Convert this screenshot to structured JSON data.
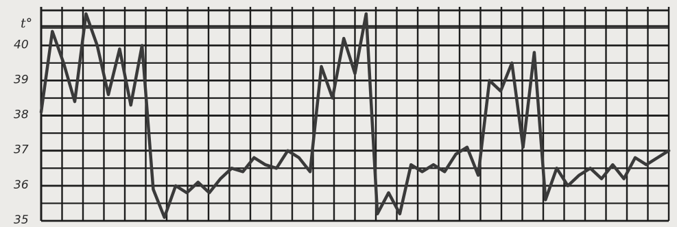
{
  "chart_data": {
    "type": "line",
    "title": "",
    "xlabel": "",
    "ylabel": "t°",
    "ylim": [
      35,
      41.1
    ],
    "y_ticks": [
      "35",
      "36",
      "37",
      "38",
      "39",
      "40"
    ],
    "grid": true,
    "grid_columns": 30,
    "colors": {
      "line": "#3a3a3a",
      "grid": "#1c1c1c",
      "paper": "#ecebe8",
      "text": "#2a2a2a"
    },
    "series": [
      {
        "values": [
          38.1,
          40.4,
          39.5,
          38.4,
          40.9,
          40.0,
          38.6,
          39.9,
          38.3,
          40.0,
          35.9,
          35.1,
          36.0,
          35.8,
          36.1,
          35.8,
          36.2,
          36.5,
          36.4,
          36.8,
          36.6,
          36.5,
          37.0,
          36.8,
          36.4,
          39.4,
          38.5,
          40.2,
          39.2,
          40.9,
          35.2,
          35.8,
          35.2,
          36.6,
          36.4,
          36.6,
          36.4,
          36.9,
          37.1,
          36.3,
          39.0,
          38.7,
          39.5,
          37.1,
          39.8,
          35.6,
          36.5,
          36.0,
          36.3,
          36.5,
          36.2,
          36.6,
          36.2,
          36.8,
          36.6,
          36.8,
          37.0
        ]
      }
    ]
  }
}
